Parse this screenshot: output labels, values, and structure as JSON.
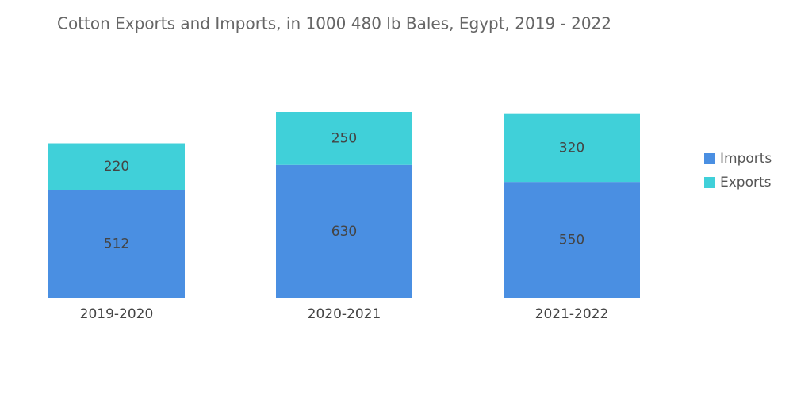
{
  "chart_data": {
    "type": "stacked_bar",
    "title": "Cotton Exports and Imports, in 1000 480 lb Bales, Egypt, 2019 - 2022",
    "categories": [
      "2019-2020",
      "2020-2021",
      "2021-2022"
    ],
    "series": [
      {
        "name": "Imports",
        "color": "#4a8fe2",
        "values": [
          512,
          630,
          550
        ]
      },
      {
        "name": "Exports",
        "color": "#40d0d9",
        "values": [
          220,
          250,
          320
        ]
      }
    ],
    "legend": "right"
  }
}
